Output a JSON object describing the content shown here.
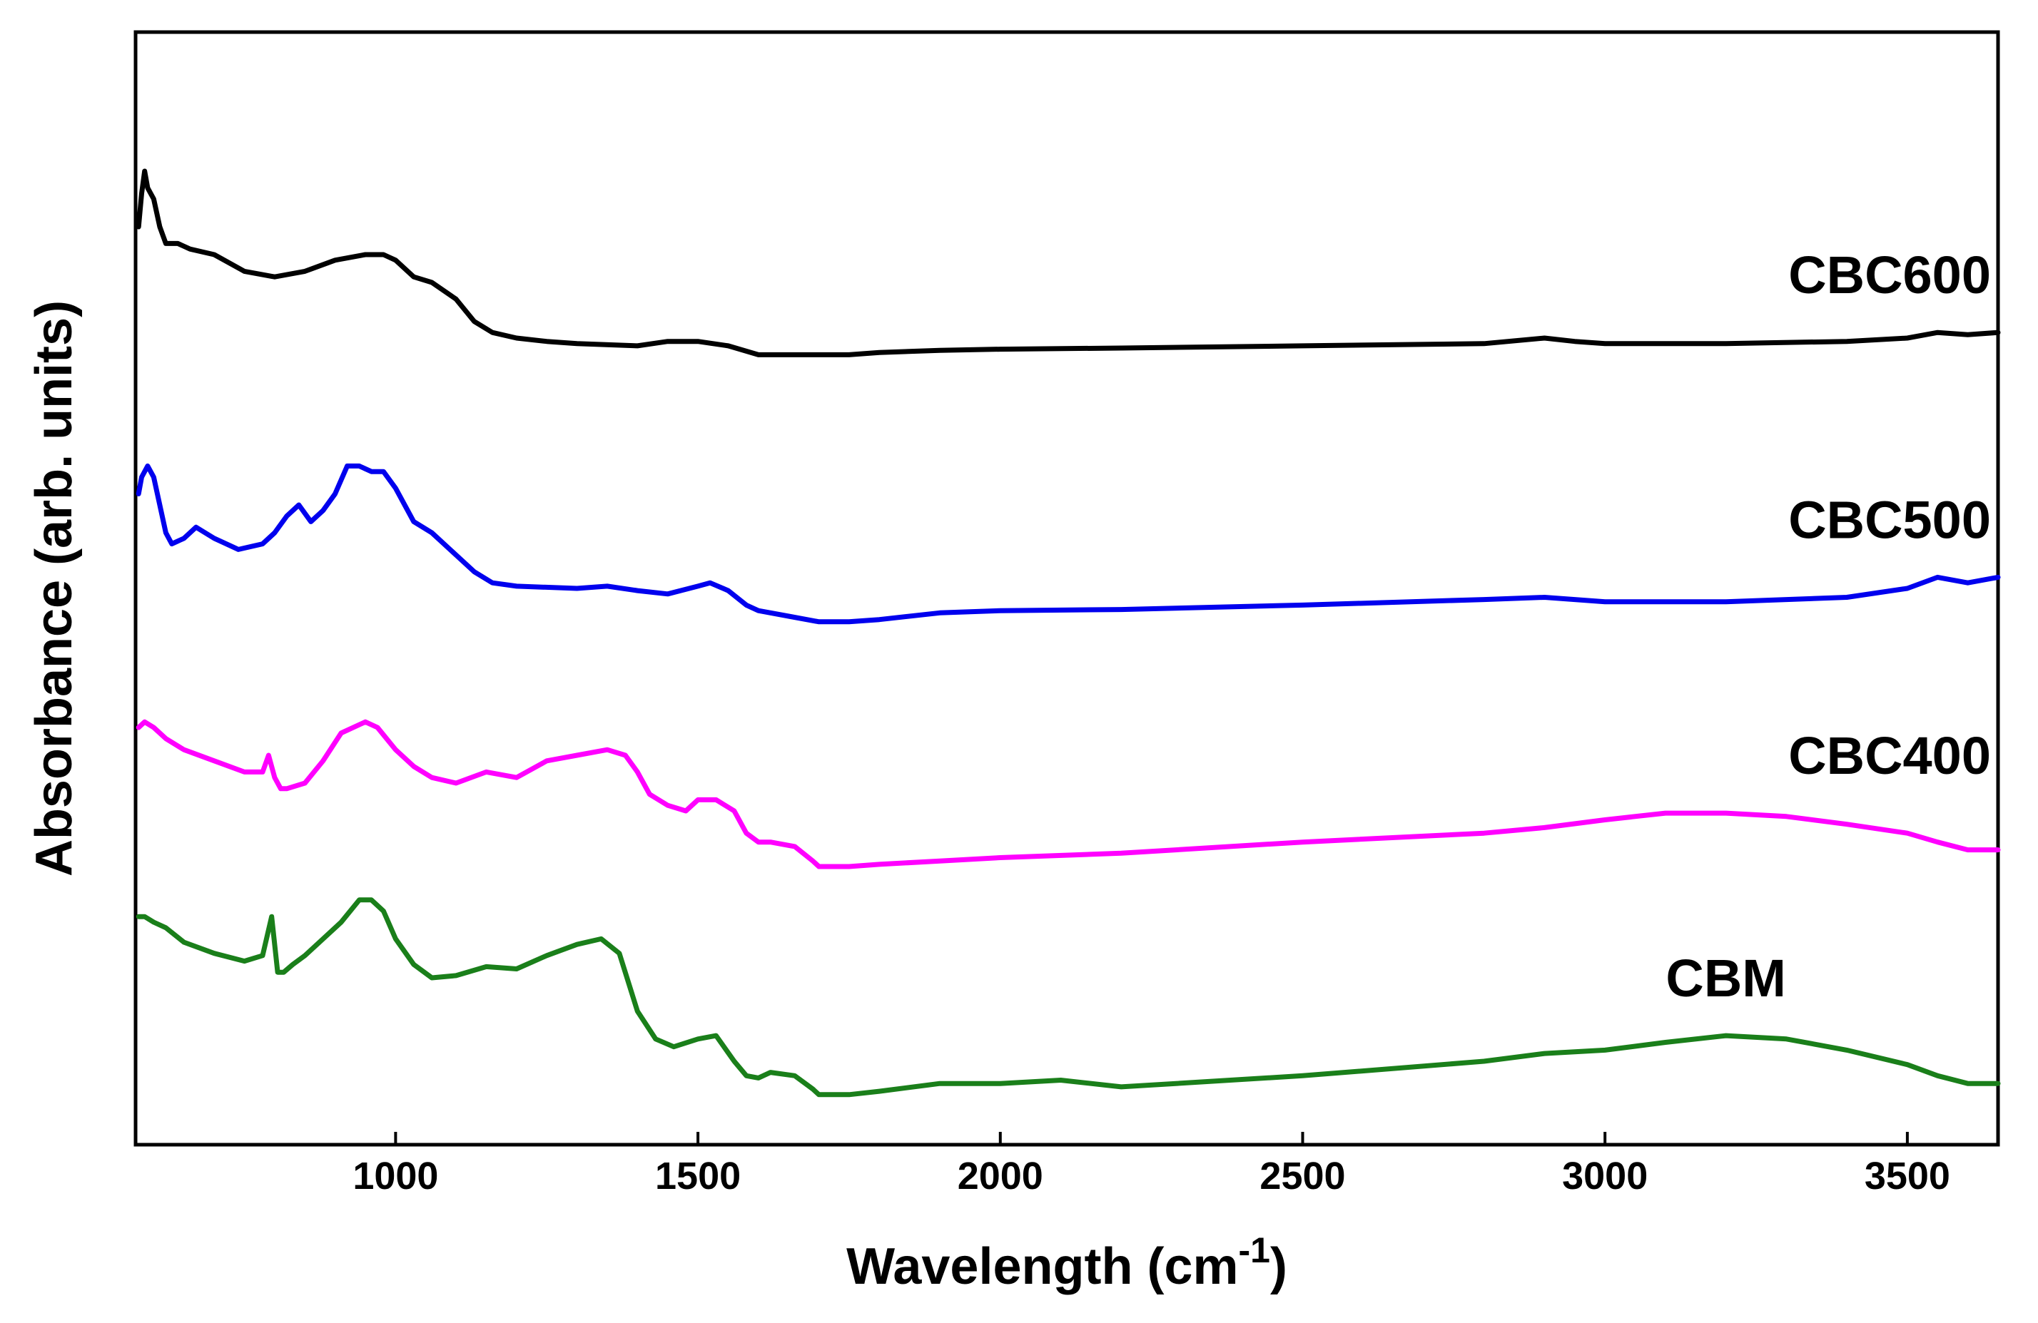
{
  "chart_data": {
    "type": "line",
    "title": "",
    "xlabel": "Wavelength (cm",
    "xlabel_sup": "-1",
    "xlabel_close": ")",
    "ylabel": "Absorbance (arb. units)",
    "xlim": [
      570,
      3650
    ],
    "ylim": [
      0,
      10
    ],
    "xticks": [
      1000,
      1500,
      2000,
      2500,
      3000,
      3500
    ],
    "xtick_labels": [
      "1000",
      "1500",
      "2000",
      "2500",
      "3000",
      "3500"
    ],
    "yticks": [],
    "grid": false,
    "series": [
      {
        "name": "CBC600",
        "label": "CBC600",
        "color": "#000000",
        "x": [
          575,
          580,
          585,
          590,
          600,
          610,
          620,
          640,
          660,
          700,
          750,
          800,
          850,
          900,
          950,
          980,
          1000,
          1030,
          1060,
          1100,
          1130,
          1160,
          1200,
          1250,
          1300,
          1400,
          1450,
          1500,
          1550,
          1600,
          1650,
          1700,
          1750,
          1800,
          1900,
          2000,
          2200,
          2500,
          2800,
          2900,
          2950,
          3000,
          3200,
          3400,
          3500,
          3550,
          3600,
          3650
        ],
        "y": [
          8.25,
          8.55,
          8.75,
          8.6,
          8.5,
          8.25,
          8.1,
          8.1,
          8.05,
          8.0,
          7.85,
          7.8,
          7.85,
          7.95,
          8.0,
          8.0,
          7.95,
          7.8,
          7.75,
          7.6,
          7.4,
          7.3,
          7.25,
          7.22,
          7.2,
          7.18,
          7.22,
          7.22,
          7.18,
          7.1,
          7.1,
          7.1,
          7.1,
          7.12,
          7.14,
          7.15,
          7.16,
          7.18,
          7.2,
          7.25,
          7.22,
          7.2,
          7.2,
          7.22,
          7.25,
          7.3,
          7.28,
          7.3
        ]
      },
      {
        "name": "CBC500",
        "label": "CBC500",
        "color": "#0000ee",
        "x": [
          575,
          580,
          590,
          600,
          610,
          620,
          630,
          650,
          670,
          700,
          740,
          780,
          800,
          820,
          840,
          860,
          880,
          900,
          920,
          940,
          960,
          980,
          1000,
          1030,
          1060,
          1100,
          1130,
          1160,
          1200,
          1300,
          1350,
          1400,
          1450,
          1500,
          1520,
          1550,
          1580,
          1600,
          1650,
          1700,
          1750,
          1800,
          1900,
          2000,
          2200,
          2500,
          2800,
          2900,
          3000,
          3200,
          3400,
          3500,
          3550,
          3600,
          3650
        ],
        "y": [
          5.85,
          6.0,
          6.1,
          6.0,
          5.75,
          5.5,
          5.4,
          5.45,
          5.55,
          5.45,
          5.35,
          5.4,
          5.5,
          5.65,
          5.75,
          5.6,
          5.7,
          5.85,
          6.1,
          6.1,
          6.05,
          6.05,
          5.9,
          5.6,
          5.5,
          5.3,
          5.15,
          5.05,
          5.02,
          5.0,
          5.02,
          4.98,
          4.95,
          5.02,
          5.05,
          4.98,
          4.85,
          4.8,
          4.75,
          4.7,
          4.7,
          4.72,
          4.78,
          4.8,
          4.81,
          4.85,
          4.9,
          4.92,
          4.88,
          4.88,
          4.92,
          5.0,
          5.1,
          5.05,
          5.1
        ]
      },
      {
        "name": "CBC400",
        "label": "CBC400",
        "color": "#ff00ff",
        "x": [
          575,
          585,
          600,
          620,
          650,
          700,
          750,
          780,
          790,
          800,
          810,
          820,
          850,
          880,
          910,
          950,
          970,
          1000,
          1030,
          1060,
          1100,
          1150,
          1200,
          1250,
          1300,
          1350,
          1380,
          1400,
          1420,
          1450,
          1480,
          1500,
          1530,
          1560,
          1580,
          1600,
          1620,
          1660,
          1690,
          1700,
          1750,
          1800,
          1900,
          2000,
          2200,
          2500,
          2800,
          2900,
          3000,
          3100,
          3200,
          3300,
          3400,
          3500,
          3550,
          3600,
          3650
        ],
        "y": [
          3.75,
          3.8,
          3.75,
          3.65,
          3.55,
          3.45,
          3.35,
          3.35,
          3.5,
          3.3,
          3.2,
          3.2,
          3.25,
          3.45,
          3.7,
          3.8,
          3.75,
          3.55,
          3.4,
          3.3,
          3.25,
          3.35,
          3.3,
          3.45,
          3.5,
          3.55,
          3.5,
          3.35,
          3.15,
          3.05,
          3.0,
          3.1,
          3.1,
          3.0,
          2.8,
          2.72,
          2.72,
          2.68,
          2.55,
          2.5,
          2.5,
          2.52,
          2.55,
          2.58,
          2.62,
          2.72,
          2.8,
          2.85,
          2.92,
          2.98,
          2.98,
          2.95,
          2.88,
          2.8,
          2.72,
          2.65,
          2.65
        ]
      },
      {
        "name": "CBM",
        "label": "CBM",
        "color": "#1a7f1a",
        "x": [
          575,
          585,
          600,
          620,
          650,
          700,
          750,
          780,
          795,
          805,
          815,
          830,
          850,
          880,
          910,
          940,
          960,
          980,
          1000,
          1030,
          1060,
          1100,
          1150,
          1200,
          1250,
          1300,
          1340,
          1370,
          1400,
          1430,
          1460,
          1500,
          1530,
          1560,
          1580,
          1600,
          1620,
          1660,
          1690,
          1700,
          1750,
          1800,
          1900,
          2000,
          2100,
          2200,
          2500,
          2800,
          2900,
          3000,
          3100,
          3200,
          3300,
          3400,
          3500,
          3550,
          3600,
          3650
        ],
        "y": [
          2.05,
          2.05,
          2.0,
          1.95,
          1.82,
          1.72,
          1.65,
          1.7,
          2.05,
          1.55,
          1.55,
          1.62,
          1.7,
          1.85,
          2.0,
          2.2,
          2.2,
          2.1,
          1.85,
          1.62,
          1.5,
          1.52,
          1.6,
          1.58,
          1.7,
          1.8,
          1.85,
          1.72,
          1.2,
          0.95,
          0.88,
          0.95,
          0.98,
          0.75,
          0.62,
          0.6,
          0.65,
          0.62,
          0.5,
          0.45,
          0.45,
          0.48,
          0.55,
          0.55,
          0.58,
          0.52,
          0.62,
          0.75,
          0.82,
          0.85,
          0.92,
          0.98,
          0.95,
          0.85,
          0.72,
          0.62,
          0.55,
          0.55
        ]
      }
    ]
  }
}
